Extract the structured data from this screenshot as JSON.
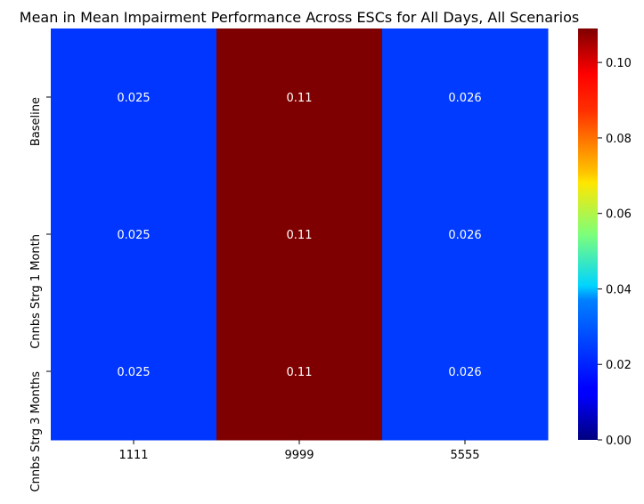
{
  "chart_data": {
    "type": "heatmap",
    "title": "Mean in Mean Impairment Performance Across ESCs for All Days, All Scenarios",
    "x_categories": [
      "1111",
      "9999",
      "5555"
    ],
    "y_categories": [
      "Baseline",
      "Cnnbs Strg 1 Month",
      "Cnnbs Strg 3 Months"
    ],
    "values": [
      [
        0.025,
        0.109,
        0.026
      ],
      [
        0.025,
        0.109,
        0.026
      ],
      [
        0.025,
        0.109,
        0.026
      ]
    ],
    "annotations": [
      [
        "0.025",
        "0.11",
        "0.026"
      ],
      [
        "0.025",
        "0.11",
        "0.026"
      ],
      [
        "0.025",
        "0.11",
        "0.026"
      ]
    ],
    "colormap": "jet",
    "vmin": 0.0,
    "vmax": 0.109,
    "colorbar_ticks": [
      0.0,
      0.02,
      0.04,
      0.06,
      0.08,
      0.1
    ],
    "colorbar_tick_labels": [
      "0.00",
      "0.02",
      "0.04",
      "0.06",
      "0.08",
      "0.10"
    ],
    "xlabel": "",
    "ylabel": ""
  }
}
